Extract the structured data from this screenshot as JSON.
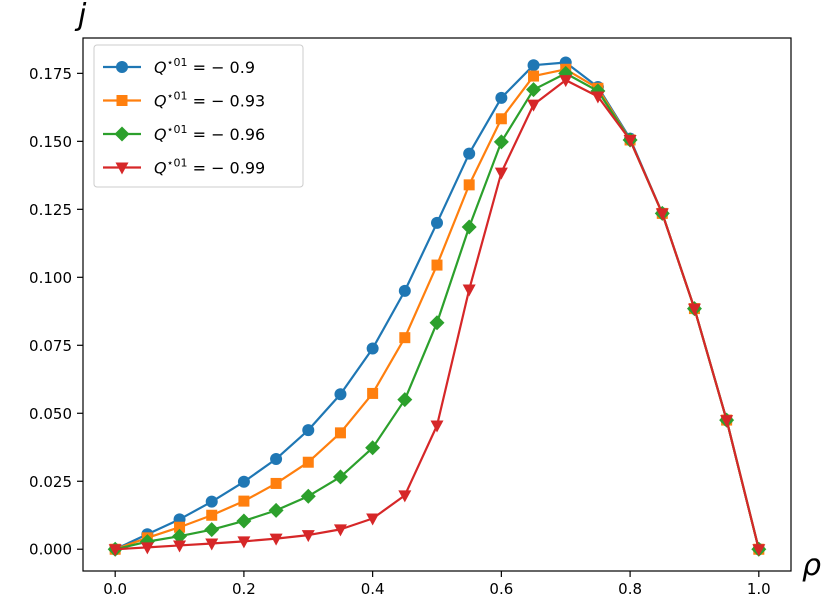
{
  "chart_data": {
    "type": "line",
    "title": "",
    "xlabel": "ρ",
    "ylabel": "j",
    "xlim": [
      -0.05,
      1.05
    ],
    "ylim": [
      -0.008,
      0.188
    ],
    "xticks": [
      0.0,
      0.2,
      0.4,
      0.6,
      0.8,
      1.0
    ],
    "xtick_labels": [
      "0.0",
      "0.2",
      "0.4",
      "0.6",
      "0.8",
      "1.0"
    ],
    "yticks": [
      0.0,
      0.025,
      0.05,
      0.075,
      0.1,
      0.125,
      0.15,
      0.175
    ],
    "ytick_labels": [
      "0.000",
      "0.025",
      "0.050",
      "0.075",
      "0.100",
      "0.125",
      "0.150",
      "0.175"
    ],
    "grid": false,
    "legend_position": "top-left",
    "x": [
      0.0,
      0.05,
      0.1,
      0.15,
      0.2,
      0.25,
      0.3,
      0.35,
      0.4,
      0.45,
      0.5,
      0.55,
      0.6,
      0.65,
      0.7,
      0.75,
      0.8,
      0.85,
      0.9,
      0.95,
      1.0
    ],
    "series": [
      {
        "name_prefix": "Q",
        "name_sup": "⋆01",
        "name_suffix": " = − 0.9",
        "color": "#1f77b4",
        "marker": "circle",
        "values": [
          0.0,
          0.0055,
          0.011,
          0.0175,
          0.0248,
          0.0332,
          0.0438,
          0.057,
          0.0738,
          0.095,
          0.12,
          0.1455,
          0.166,
          0.178,
          0.179,
          0.17,
          0.151,
          0.1235,
          0.0885,
          0.0475,
          0.0
        ]
      },
      {
        "name_prefix": "Q",
        "name_sup": "⋆01",
        "name_suffix": " = − 0.93",
        "color": "#ff7f0e",
        "marker": "square",
        "values": [
          0.0,
          0.0042,
          0.0081,
          0.0125,
          0.0177,
          0.0242,
          0.032,
          0.0428,
          0.0573,
          0.0778,
          0.1045,
          0.134,
          0.1583,
          0.174,
          0.1765,
          0.1695,
          0.1505,
          0.1235,
          0.0885,
          0.0475,
          0.0
        ]
      },
      {
        "name_prefix": "Q",
        "name_sup": "⋆01",
        "name_suffix": " = − 0.96",
        "color": "#2ca02c",
        "marker": "diamond",
        "values": [
          0.0,
          0.0028,
          0.0048,
          0.0072,
          0.0104,
          0.0143,
          0.0195,
          0.0266,
          0.0373,
          0.055,
          0.0833,
          0.1185,
          0.1498,
          0.169,
          0.175,
          0.1685,
          0.1505,
          0.1235,
          0.0885,
          0.0475,
          0.0
        ]
      },
      {
        "name_prefix": "Q",
        "name_sup": "⋆01",
        "name_suffix": " = − 0.99",
        "color": "#d62728",
        "marker": "triangle-down",
        "values": [
          0.0,
          0.0007,
          0.0014,
          0.0021,
          0.0029,
          0.0039,
          0.0052,
          0.0073,
          0.0113,
          0.0198,
          0.0455,
          0.0955,
          0.1385,
          0.1635,
          0.1725,
          0.1665,
          0.1505,
          0.1235,
          0.0885,
          0.0475,
          0.0
        ]
      }
    ]
  }
}
